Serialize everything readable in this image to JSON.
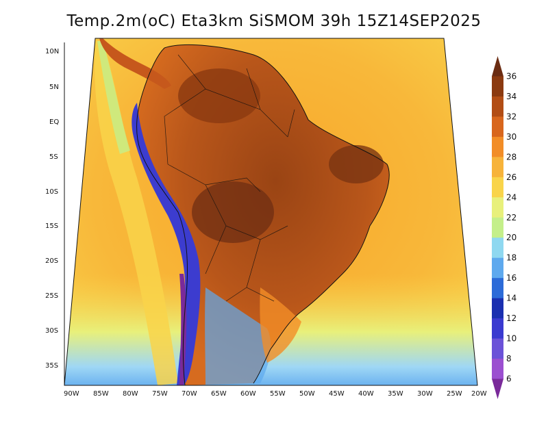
{
  "title": "Temp.2m(oC) Eta3km SiSMOM 39h 15Z14SEP2025",
  "map": {
    "lat_labels": [
      "10N",
      "5N",
      "EQ",
      "5S",
      "10S",
      "15S",
      "20S",
      "25S",
      "30S",
      "35S"
    ],
    "lon_labels": [
      "90W",
      "85W",
      "80W",
      "75W",
      "70W",
      "65W",
      "60W",
      "55W",
      "50W",
      "45W",
      "40W",
      "35W",
      "30W",
      "25W",
      "20W"
    ],
    "lon_range": [
      -90,
      -20
    ],
    "lat_range": [
      -38,
      12
    ],
    "colors": {
      "ocean_warm": "#f5a623",
      "ocean_mid": "#f8c93c",
      "ocean_cool": "#fbe45a",
      "land_hot": "#8b3a0f",
      "land_warm": "#c6581c",
      "andes": "#3c3ccf",
      "south_cool": "#9fd7f5"
    }
  },
  "colorbar": {
    "values": [
      "36",
      "34",
      "32",
      "30",
      "28",
      "26",
      "24",
      "22",
      "20",
      "18",
      "16",
      "14",
      "12",
      "10",
      "8",
      "6"
    ],
    "colors": [
      "#6b2c12",
      "#8b3a10",
      "#b24d15",
      "#d8661d",
      "#f28d27",
      "#f7b33a",
      "#f9d44a",
      "#e8f07b",
      "#c4ef8a",
      "#8fd8f0",
      "#5ea9ee",
      "#2c6bd8",
      "#1a2fb0",
      "#3a3ad0",
      "#6b52d8",
      "#9b4fd0",
      "#7a2a9a"
    ]
  }
}
